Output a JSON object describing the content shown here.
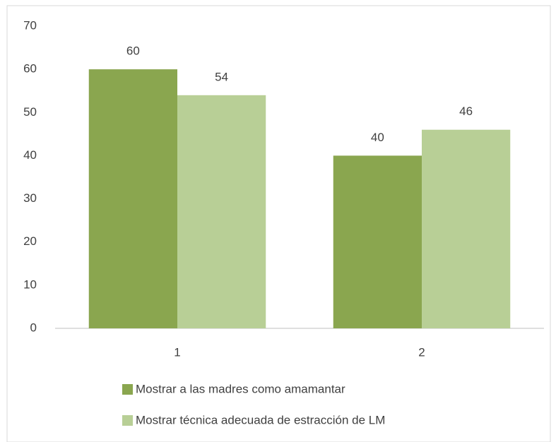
{
  "chart_data": {
    "type": "bar",
    "categories": [
      "1",
      "2"
    ],
    "series": [
      {
        "name": "Mostrar a las madres como amamantar",
        "color": "#8aa64f",
        "values": [
          60,
          40
        ]
      },
      {
        "name": "Mostrar técnica adecuada de estracción de LM",
        "color": "#b8cf96",
        "values": [
          54,
          46
        ]
      }
    ],
    "ylim": [
      0,
      70
    ],
    "yticks": [
      0,
      10,
      20,
      30,
      40,
      50,
      60,
      70
    ],
    "grid": false,
    "legend": "bottom"
  }
}
